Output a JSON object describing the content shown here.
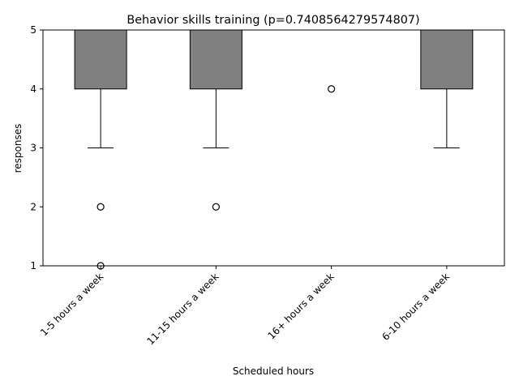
{
  "chart_data": {
    "type": "boxplot",
    "title": "Behavior skills training (p=0.7408564279574807)",
    "xlabel": "Scheduled hours",
    "ylabel": "responses",
    "ylim": [
      1,
      5
    ],
    "yticks": [
      1,
      2,
      3,
      4,
      5
    ],
    "categories": [
      "1-5 hours a week",
      "11-15 hours a week",
      "16+ hours a week",
      "6-10 hours a week"
    ],
    "boxes": [
      {
        "q1": 4,
        "median": 5,
        "q3": 5,
        "whisker_low": 3,
        "whisker_high": 5,
        "outliers": [
          2,
          1
        ]
      },
      {
        "q1": 4,
        "median": 5,
        "q3": 5,
        "whisker_low": 3,
        "whisker_high": 5,
        "outliers": [
          2
        ]
      },
      {
        "q1": 5,
        "median": 5,
        "q3": 5,
        "whisker_low": 5,
        "whisker_high": 5,
        "outliers": [
          4
        ]
      },
      {
        "q1": 4,
        "median": 5,
        "q3": 5,
        "whisker_low": 3,
        "whisker_high": 5,
        "outliers": []
      }
    ],
    "box_color": "#808080",
    "grid": false,
    "legend": "none"
  }
}
